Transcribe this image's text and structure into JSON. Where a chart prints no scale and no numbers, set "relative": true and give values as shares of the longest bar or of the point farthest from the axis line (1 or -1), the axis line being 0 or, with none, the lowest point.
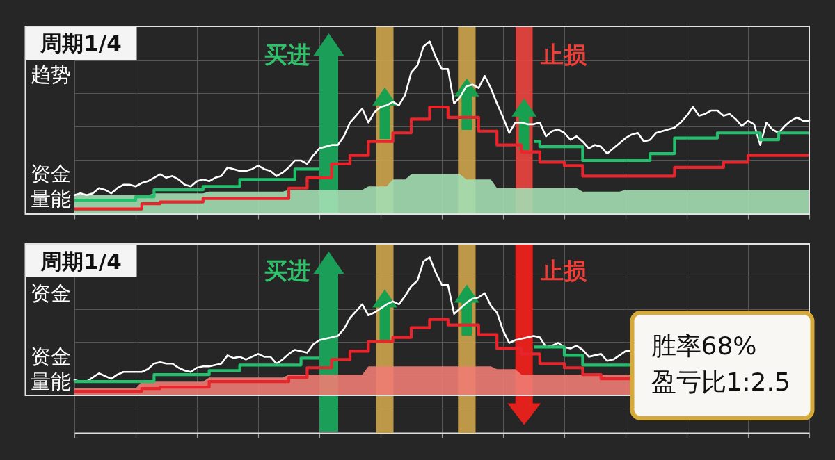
{
  "chart_data": [
    {
      "type": "line",
      "title": "周期1/4",
      "ylabel": "趋势",
      "relative": true,
      "grid": true,
      "categories": [
        null,
        null,
        null,
        null,
        null,
        null,
        null,
        null,
        null,
        null,
        null,
        null,
        null,
        null,
        null,
        null,
        null,
        null,
        null,
        null,
        null,
        null,
        null,
        null,
        null,
        null,
        null,
        null,
        null,
        null,
        null,
        null,
        null,
        null,
        null,
        null,
        null,
        null,
        null,
        null,
        null,
        null,
        null,
        null,
        null,
        null,
        null,
        null,
        null,
        null,
        null,
        null,
        null,
        null,
        null,
        null,
        null,
        null,
        null,
        null,
        null,
        null,
        null,
        null,
        null,
        null,
        null,
        null,
        null,
        null,
        null,
        null,
        null,
        null,
        null,
        null,
        null,
        null,
        null,
        null,
        null,
        null,
        null,
        null,
        null,
        null,
        null,
        null,
        null,
        null,
        null,
        null,
        null,
        null,
        null,
        null,
        null,
        null,
        null,
        null,
        null,
        null,
        null,
        null,
        null,
        null,
        null,
        null,
        null,
        null,
        null,
        null,
        null,
        null,
        null,
        null,
        null,
        null,
        null,
        null,
        null
      ],
      "series": [
        {
          "type": "line",
          "color": "#ffffff",
          "values": [
            0.11,
            0.12,
            0.11,
            0.12,
            0.15,
            0.14,
            0.12,
            0.15,
            0.17,
            0.17,
            0.16,
            0.18,
            0.19,
            0.21,
            0.23,
            0.21,
            0.22,
            0.2,
            0.17,
            0.16,
            0.19,
            0.2,
            0.19,
            0.21,
            0.22,
            0.27,
            0.26,
            0.25,
            0.25,
            0.26,
            0.28,
            0.26,
            0.25,
            0.22,
            0.24,
            0.27,
            0.31,
            0.31,
            0.29,
            0.34,
            0.38,
            0.39,
            0.4,
            0.4,
            0.45,
            0.53,
            0.57,
            0.61,
            0.53,
            0.59,
            0.62,
            0.63,
            0.65,
            0.63,
            0.69,
            0.82,
            0.86,
            0.97,
            1,
            0.91,
            0.84,
            0.84,
            0.64,
            0.68,
            0.74,
            0.75,
            0.73,
            0.8,
            0.73,
            0.64,
            0.56,
            0.47,
            0.53,
            0.53,
            0.52,
            0.52,
            0.53,
            0.45,
            0.48,
            0.49,
            0.47,
            0.43,
            0.45,
            0.42,
            0.38,
            0.4,
            0.39,
            0.35,
            0.38,
            0.41,
            0.44,
            0.46,
            0.47,
            0.42,
            0.43,
            0.47,
            0.48,
            0.49,
            0.5,
            0.53,
            0.57,
            0.62,
            0.57,
            0.58,
            0.6,
            0.6,
            0.57,
            0.58,
            0.55,
            0.51,
            0.54,
            0.52,
            0.4,
            0.53,
            0.49,
            0.47,
            0.51,
            0.54,
            0.56,
            0.54,
            0.54
          ]
        },
        {
          "type": "step",
          "color": "#22c06c",
          "values": [
            0.08,
            0.08,
            0.08,
            0.08,
            0.08,
            0.08,
            0.08,
            0.08,
            0.08,
            0.08,
            0.1,
            0.1,
            0.1,
            0.14,
            0.14,
            0.14,
            0.14,
            0.14,
            0.14,
            0.14,
            0.14,
            0.16,
            0.16,
            0.16,
            0.16,
            0.16,
            0.16,
            0.2,
            0.2,
            0.2,
            0.2,
            0.2,
            0.2,
            0.2,
            0.2,
            0.2,
            0.26,
            0.26,
            0.26,
            0.26,
            0.26,
            null,
            null,
            null,
            null,
            null,
            null,
            null,
            null,
            null,
            null,
            null,
            null,
            null,
            null,
            null,
            null,
            null,
            null,
            null,
            null,
            null,
            null,
            null,
            null,
            null,
            null,
            null,
            null,
            null,
            null,
            null,
            null,
            null,
            null,
            0.42,
            0.39,
            0.39,
            0.39,
            0.39,
            0.39,
            0.39,
            0.39,
            0.31,
            0.31,
            0.31,
            0.31,
            0.31,
            0.31,
            0.31,
            0.31,
            0.31,
            0.31,
            0.31,
            0.35,
            0.35,
            0.35,
            0.35,
            0.44,
            0.44,
            0.44,
            0.44,
            0.44,
            0.44,
            0.44,
            0.47,
            0.47,
            0.47,
            0.47,
            0.47,
            0.47,
            0.47,
            0.43,
            0.43,
            0.43,
            0.47,
            0.47,
            0.47,
            0.47,
            0.47,
            0.47
          ]
        },
        {
          "type": "step",
          "color": "#e8242c",
          "values": [
            0.03,
            0.03,
            0.03,
            0.03,
            0.03,
            0.03,
            0.03,
            0.03,
            0.03,
            0.03,
            0.03,
            0.06,
            0.06,
            0.06,
            0.07,
            0.07,
            0.07,
            0.07,
            0.07,
            0.07,
            0.07,
            0.09,
            0.09,
            0.09,
            0.09,
            0.09,
            0.09,
            0.09,
            0.09,
            0.09,
            0.09,
            0.09,
            0.09,
            0.09,
            0.09,
            0.15,
            0.15,
            0.15,
            0.21,
            0.21,
            0.21,
            0.21,
            0.29,
            0.29,
            0.29,
            0.34,
            0.34,
            0.34,
            0.42,
            0.42,
            0.42,
            0.42,
            0.47,
            0.47,
            0.47,
            0.55,
            0.55,
            0.55,
            0.62,
            0.62,
            0.62,
            0.56,
            0.56,
            0.56,
            0.56,
            0.56,
            0.48,
            0.48,
            0.48,
            0.4,
            0.4,
            0.4,
            0.4,
            0.36,
            0.36,
            0.36,
            0.3,
            0.3,
            0.3,
            0.3,
            0.28,
            0.28,
            0.28,
            0.22,
            0.22,
            0.22,
            0.22,
            0.22,
            0.22,
            0.22,
            0.22,
            0.22,
            0.22,
            0.22,
            0.22,
            0.22,
            0.22,
            0.22,
            0.27,
            0.27,
            0.27,
            0.27,
            0.27,
            0.27,
            0.27,
            0.27,
            0.3,
            0.3,
            0.3,
            0.3,
            0.34,
            0.34,
            0.34,
            0.34,
            0.34,
            0.34,
            0.34,
            0.34,
            0.34,
            0.34,
            0.34
          ]
        },
        {
          "type": "area",
          "color": "#a3deb3",
          "values": [
            0.11,
            0.11,
            0.11,
            0.11,
            0.11,
            0.11,
            0.11,
            0.11,
            0.11,
            0.11,
            0.11,
            0.11,
            0.11,
            0.12,
            0.12,
            0.12,
            0.12,
            0.12,
            0.12,
            0.12,
            0.12,
            0.12,
            0.13,
            0.13,
            0.13,
            0.13,
            0.13,
            0.13,
            0.13,
            0.13,
            0.13,
            0.13,
            0.13,
            0.13,
            0.13,
            0.14,
            0.14,
            0.14,
            0.14,
            0.14,
            0.14,
            0.14,
            0.14,
            0.14,
            0.14,
            0.14,
            0.14,
            0.14,
            0.16,
            0.16,
            0.16,
            0.16,
            0.2,
            0.2,
            0.2,
            0.23,
            0.23,
            0.23,
            0.23,
            0.23,
            0.23,
            0.23,
            0.23,
            0.23,
            0.2,
            0.2,
            0.2,
            0.2,
            0.2,
            0.15,
            0.15,
            0.15,
            0.15,
            0.15,
            0.15,
            0.15,
            0.15,
            0.15,
            0.15,
            0.15,
            0.15,
            0.15,
            0.15,
            0.13,
            0.13,
            0.13,
            0.13,
            0.13,
            0.13,
            0.13,
            0.14,
            0.14,
            0.14,
            0.14,
            0.14,
            0.14,
            0.14,
            0.14,
            0.14,
            0.14,
            0.14,
            0.14,
            0.14,
            0.14,
            0.14,
            0.14,
            0.14,
            0.14,
            0.14,
            0.14,
            0.14,
            0.14,
            0.14,
            0.14,
            0.14,
            0.14,
            0.14,
            0.14,
            0.14,
            0.14,
            0.14
          ]
        }
      ],
      "annotations": [
        "资金量能",
        "买进",
        "止损"
      ]
    },
    {
      "type": "line",
      "title": "周期1/4",
      "ylabel": "资金",
      "relative": true,
      "grid": true,
      "categories": [
        null,
        null,
        null,
        null,
        null,
        null,
        null,
        null,
        null,
        null,
        null,
        null,
        null,
        null,
        null,
        null,
        null,
        null,
        null,
        null,
        null,
        null,
        null,
        null,
        null,
        null,
        null,
        null,
        null,
        null,
        null,
        null,
        null,
        null,
        null,
        null,
        null,
        null,
        null,
        null,
        null,
        null,
        null,
        null,
        null,
        null,
        null,
        null,
        null,
        null,
        null,
        null,
        null,
        null,
        null,
        null,
        null,
        null,
        null,
        null,
        null,
        null,
        null,
        null,
        null,
        null,
        null,
        null,
        null,
        null,
        null,
        null,
        null,
        null,
        null,
        null,
        null,
        null,
        null,
        null,
        null,
        null,
        null,
        null,
        null,
        null,
        null,
        null,
        null,
        null,
        null,
        null,
        null,
        null,
        null,
        null,
        null,
        null,
        null,
        null,
        null,
        null,
        null,
        null,
        null,
        null,
        null,
        null,
        null,
        null,
        null,
        null,
        null,
        null,
        null,
        null,
        null,
        null,
        null,
        null,
        null
      ],
      "series": [
        {
          "type": "line",
          "color": "#ffffff",
          "values": [
            0.11,
            0.1,
            0.1,
            0.13,
            0.16,
            0.14,
            0.12,
            0.15,
            0.17,
            0.17,
            0.17,
            0.17,
            0.19,
            0.23,
            0.24,
            0.23,
            0.23,
            0.2,
            0.18,
            0.17,
            0.2,
            0.21,
            0.21,
            0.22,
            0.23,
            0.29,
            0.27,
            0.28,
            0.26,
            0.28,
            0.3,
            0.28,
            0.28,
            0.23,
            0.26,
            0.3,
            0.33,
            0.32,
            0.31,
            0.37,
            0.4,
            0.41,
            0.42,
            0.43,
            0.48,
            0.56,
            0.61,
            0.66,
            0.58,
            0.6,
            0.63,
            0.66,
            0.68,
            0.66,
            0.72,
            0.79,
            0.83,
            0.97,
            1,
            0.89,
            0.8,
            0.8,
            0.59,
            0.63,
            0.67,
            0.7,
            0.71,
            0.74,
            0.65,
            0.6,
            0.47,
            0.38,
            0.4,
            0.41,
            0.42,
            0.43,
            0.42,
            0.35,
            0.36,
            0.38,
            0.35,
            0.34,
            0.36,
            0.33,
            0.28,
            0.29,
            0.3,
            0.25,
            0.26,
            0.29,
            0.32,
            0.32,
            null,
            null,
            null,
            null,
            null,
            null,
            null,
            null,
            null,
            null,
            null,
            null,
            null,
            null,
            null,
            null,
            null,
            null,
            null,
            null,
            null,
            null,
            null,
            null,
            null,
            null,
            null,
            null,
            null
          ]
        },
        {
          "type": "step",
          "color": "#22c06c",
          "values": [
            0.1,
            0.1,
            0.1,
            0.1,
            0.1,
            0.1,
            0.1,
            0.1,
            0.1,
            0.1,
            0.1,
            0.1,
            0.1,
            0.15,
            0.15,
            0.15,
            0.15,
            0.15,
            0.15,
            0.15,
            0.15,
            0.15,
            0.18,
            0.18,
            0.18,
            0.18,
            0.18,
            0.22,
            0.22,
            0.22,
            0.22,
            0.22,
            0.22,
            0.22,
            0.22,
            0.22,
            0.22,
            0.27,
            0.27,
            0.27,
            0.27,
            null,
            null,
            null,
            null,
            null,
            null,
            null,
            null,
            null,
            null,
            null,
            null,
            null,
            null,
            null,
            null,
            null,
            null,
            null,
            null,
            null,
            null,
            null,
            null,
            null,
            null,
            null,
            null,
            null,
            null,
            null,
            null,
            null,
            null,
            0.35,
            0.35,
            0.35,
            0.35,
            0.35,
            0.29,
            0.29,
            0.29,
            0.22,
            0.22,
            0.22,
            0.22,
            0.22,
            0.22,
            0.22,
            0.22,
            0.22,
            null,
            null,
            null,
            null,
            null,
            null,
            null,
            null,
            null,
            null,
            null,
            null,
            null,
            null,
            null,
            null,
            null,
            null,
            null,
            null,
            null,
            null,
            null,
            null,
            null,
            null,
            null,
            null,
            null
          ]
        },
        {
          "type": "step",
          "color": "#e8242c",
          "values": [
            0.03,
            0.03,
            0.03,
            0.03,
            0.03,
            0.03,
            0.03,
            0.03,
            0.03,
            0.03,
            0.03,
            0.05,
            0.05,
            0.05,
            0.06,
            0.06,
            0.06,
            0.06,
            0.06,
            0.06,
            0.06,
            0.06,
            0.1,
            0.1,
            0.1,
            0.1,
            0.1,
            0.1,
            0.1,
            0.1,
            0.1,
            0.1,
            0.1,
            0.1,
            0.1,
            0.13,
            0.13,
            0.13,
            0.2,
            0.2,
            0.2,
            0.2,
            0.26,
            0.26,
            0.26,
            0.32,
            0.32,
            0.32,
            0.39,
            0.39,
            0.39,
            0.39,
            0.42,
            0.42,
            0.42,
            0.49,
            0.49,
            0.49,
            0.55,
            0.55,
            0.55,
            0.51,
            0.51,
            0.51,
            0.51,
            0.51,
            0.44,
            0.44,
            0.44,
            0.34,
            0.34,
            0.34,
            0.34,
            0.3,
            0.3,
            0.3,
            0.23,
            0.23,
            0.23,
            0.23,
            0.2,
            0.2,
            0.2,
            0.15,
            0.15,
            0.15,
            0.12,
            0.12,
            0.12,
            0.12,
            0.12,
            0.12,
            null,
            null,
            null,
            null,
            null,
            null,
            null,
            null,
            null,
            null,
            null,
            null,
            null,
            null,
            null,
            null,
            null,
            null,
            null,
            null,
            null,
            null,
            null,
            null,
            null,
            null,
            null,
            null,
            null
          ]
        },
        {
          "type": "area",
          "color": "#ee7c74",
          "values": [
            0.05,
            0.05,
            0.05,
            0.05,
            0.05,
            0.05,
            0.05,
            0.05,
            0.05,
            0.05,
            0.05,
            0.1,
            0.1,
            0.1,
            0.1,
            0.1,
            0.1,
            0.1,
            0.1,
            0.1,
            0.1,
            0.1,
            0.13,
            0.13,
            0.13,
            0.13,
            0.13,
            0.13,
            0.13,
            0.13,
            0.13,
            0.13,
            0.13,
            0.13,
            0.13,
            0.15,
            0.15,
            0.15,
            0.15,
            0.15,
            0.15,
            0.15,
            0.15,
            0.15,
            0.15,
            0.15,
            0.15,
            0.15,
            0.21,
            0.21,
            0.21,
            0.21,
            0.21,
            0.21,
            0.21,
            0.21,
            0.21,
            0.21,
            0.21,
            0.21,
            0.21,
            0.21,
            0.21,
            0.21,
            0.21,
            0.21,
            0.21,
            0.21,
            0.21,
            0.19,
            0.19,
            0.19,
            0.19,
            0.15,
            0.15,
            0.15,
            0.15,
            0.15,
            0.15,
            0.15,
            0.15,
            0.15,
            0.15,
            0.15,
            0.15,
            0.15,
            0.15,
            0.15,
            0.15,
            0.15,
            0.15,
            0.15,
            null,
            null,
            null,
            null,
            null,
            null,
            null,
            null,
            null,
            null,
            null,
            null,
            null,
            null,
            null,
            null,
            null,
            null,
            null,
            null,
            null,
            null,
            null,
            null,
            null,
            null,
            null,
            null,
            null
          ]
        }
      ],
      "annotations": [
        "资金量能",
        "买进",
        "止损",
        "胜率68%",
        "盈亏比1:2.5"
      ]
    }
  ]
}
